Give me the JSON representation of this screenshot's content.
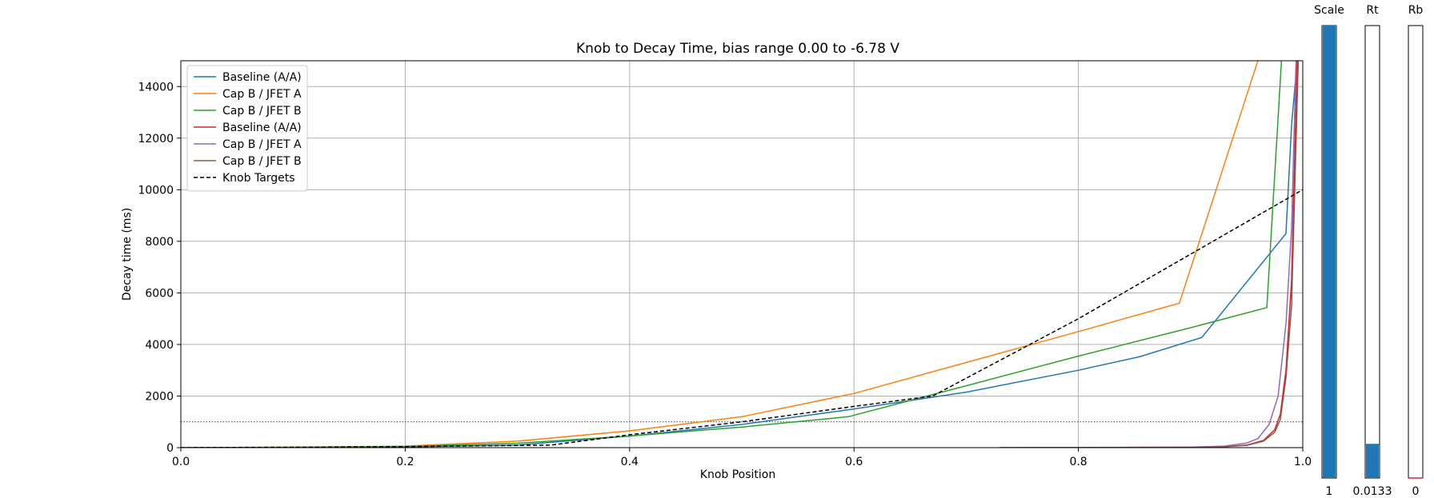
{
  "chart_data": {
    "type": "line",
    "title": "Knob to Decay Time, bias range 0.00 to -6.78 V",
    "xlabel": "Knob Position",
    "ylabel": "Decay time (ms)",
    "xlim": [
      0,
      1
    ],
    "ylim": [
      0,
      15000
    ],
    "xticks": [
      0.0,
      0.2,
      0.4,
      0.6,
      0.8,
      1.0
    ],
    "xtick_labels": [
      "0.0",
      "0.2",
      "0.4",
      "0.6",
      "0.8",
      "1.0"
    ],
    "yticks": [
      0,
      2000,
      4000,
      6000,
      8000,
      10000,
      12000,
      14000
    ],
    "ytick_labels": [
      "0",
      "2000",
      "4000",
      "6000",
      "8000",
      "10000",
      "12000",
      "14000"
    ],
    "grid": true,
    "legend_position": "upper-left",
    "reference_line": {
      "y": 1000,
      "style": "dotted"
    },
    "series": [
      {
        "name": "Baseline (A/A)",
        "color": "#1f77b4",
        "style": "solid",
        "x": [
          0,
          0.1,
          0.2,
          0.3,
          0.4,
          0.5,
          0.6,
          0.7,
          0.8,
          0.855,
          0.91,
          0.985,
          0.99,
          0.995
        ],
        "y": [
          0,
          10,
          30,
          100,
          450,
          900,
          1500,
          2150,
          3000,
          3530,
          4270,
          8300,
          12500,
          15000
        ]
      },
      {
        "name": "Cap B / JFET A",
        "color": "#ff7f0e",
        "style": "solid",
        "x": [
          0,
          0.1,
          0.2,
          0.3,
          0.4,
          0.5,
          0.6,
          0.7,
          0.8,
          0.89,
          0.96
        ],
        "y": [
          0,
          15,
          60,
          250,
          650,
          1200,
          2100,
          3300,
          4500,
          5600,
          15000
        ]
      },
      {
        "name": "Cap B / JFET B",
        "color": "#2ca02c",
        "style": "solid",
        "x": [
          0,
          0.1,
          0.2,
          0.3,
          0.4,
          0.5,
          0.595,
          0.7,
          0.8,
          0.9,
          0.968,
          0.981
        ],
        "y": [
          0,
          12,
          45,
          170,
          450,
          800,
          1200,
          2400,
          3550,
          4650,
          5430,
          15000
        ]
      },
      {
        "name": "Baseline (A/A)",
        "color": "#d62728",
        "style": "solid",
        "x": [
          0.73,
          0.8,
          0.9,
          0.93,
          0.95,
          0.965,
          0.975,
          0.98,
          0.985,
          0.99,
          0.995
        ],
        "y": [
          0,
          5,
          15,
          40,
          100,
          280,
          700,
          1300,
          3000,
          6500,
          15000
        ]
      },
      {
        "name": "Cap B / JFET A",
        "color": "#9467bd",
        "style": "solid",
        "x": [
          0.73,
          0.8,
          0.9,
          0.93,
          0.95,
          0.96,
          0.97,
          0.978,
          0.985,
          0.99,
          0.994
        ],
        "y": [
          0,
          5,
          20,
          60,
          180,
          350,
          900,
          2000,
          4800,
          8500,
          15000
        ]
      },
      {
        "name": "Cap B / JFET B",
        "color": "#8c564b",
        "style": "solid",
        "x": [
          0.73,
          0.8,
          0.9,
          0.93,
          0.95,
          0.965,
          0.975,
          0.98,
          0.985,
          0.99,
          0.996
        ],
        "y": [
          0,
          4,
          12,
          35,
          90,
          250,
          600,
          1100,
          2700,
          5500,
          15000
        ]
      },
      {
        "name": "Knob Targets",
        "color": "#000000",
        "style": "dashed",
        "x": [
          0,
          0.1,
          0.2,
          0.33,
          0.4,
          0.5,
          0.6,
          0.67,
          0.8,
          0.9,
          1.0
        ],
        "y": [
          0,
          20,
          40,
          100,
          500,
          1000,
          1600,
          2000,
          5000,
          7500,
          10000
        ]
      }
    ]
  },
  "sliders": [
    {
      "label": "Scale",
      "value_label": "1",
      "fraction": 1.0
    },
    {
      "label": "Rt",
      "value_label": "0.0133",
      "fraction": 0.0133
    },
    {
      "label": "Rb",
      "value_label": "0",
      "fraction": 0.0
    }
  ],
  "colors": {
    "slider_fill": "#1f77b4",
    "grid": "#b0b0b0",
    "slider_frame": "#000000"
  }
}
